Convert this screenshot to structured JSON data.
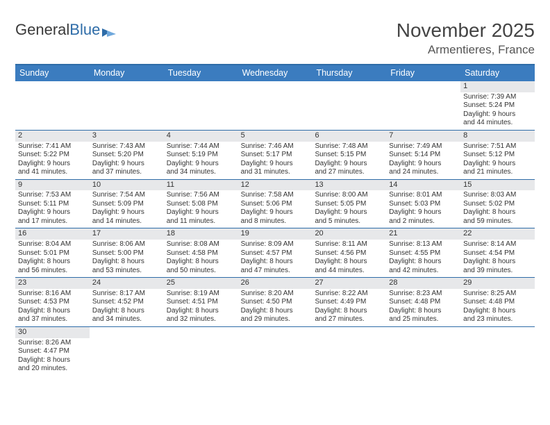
{
  "logo": {
    "part1": "General",
    "part2": "Blue"
  },
  "header": {
    "month_title": "November 2025",
    "location": "Armentieres, France"
  },
  "colors": {
    "accent": "#2e6ca8",
    "header_bg": "#3b7cbf",
    "daynum_bg": "#e7e8ea",
    "text": "#333333"
  },
  "weekdays": [
    "Sunday",
    "Monday",
    "Tuesday",
    "Wednesday",
    "Thursday",
    "Friday",
    "Saturday"
  ],
  "weeks": [
    [
      {
        "n": "",
        "lines": []
      },
      {
        "n": "",
        "lines": []
      },
      {
        "n": "",
        "lines": []
      },
      {
        "n": "",
        "lines": []
      },
      {
        "n": "",
        "lines": []
      },
      {
        "n": "",
        "lines": []
      },
      {
        "n": "1",
        "lines": [
          "Sunrise: 7:39 AM",
          "Sunset: 5:24 PM",
          "Daylight: 9 hours",
          "and 44 minutes."
        ]
      }
    ],
    [
      {
        "n": "2",
        "lines": [
          "Sunrise: 7:41 AM",
          "Sunset: 5:22 PM",
          "Daylight: 9 hours",
          "and 41 minutes."
        ]
      },
      {
        "n": "3",
        "lines": [
          "Sunrise: 7:43 AM",
          "Sunset: 5:20 PM",
          "Daylight: 9 hours",
          "and 37 minutes."
        ]
      },
      {
        "n": "4",
        "lines": [
          "Sunrise: 7:44 AM",
          "Sunset: 5:19 PM",
          "Daylight: 9 hours",
          "and 34 minutes."
        ]
      },
      {
        "n": "5",
        "lines": [
          "Sunrise: 7:46 AM",
          "Sunset: 5:17 PM",
          "Daylight: 9 hours",
          "and 31 minutes."
        ]
      },
      {
        "n": "6",
        "lines": [
          "Sunrise: 7:48 AM",
          "Sunset: 5:15 PM",
          "Daylight: 9 hours",
          "and 27 minutes."
        ]
      },
      {
        "n": "7",
        "lines": [
          "Sunrise: 7:49 AM",
          "Sunset: 5:14 PM",
          "Daylight: 9 hours",
          "and 24 minutes."
        ]
      },
      {
        "n": "8",
        "lines": [
          "Sunrise: 7:51 AM",
          "Sunset: 5:12 PM",
          "Daylight: 9 hours",
          "and 21 minutes."
        ]
      }
    ],
    [
      {
        "n": "9",
        "lines": [
          "Sunrise: 7:53 AM",
          "Sunset: 5:11 PM",
          "Daylight: 9 hours",
          "and 17 minutes."
        ]
      },
      {
        "n": "10",
        "lines": [
          "Sunrise: 7:54 AM",
          "Sunset: 5:09 PM",
          "Daylight: 9 hours",
          "and 14 minutes."
        ]
      },
      {
        "n": "11",
        "lines": [
          "Sunrise: 7:56 AM",
          "Sunset: 5:08 PM",
          "Daylight: 9 hours",
          "and 11 minutes."
        ]
      },
      {
        "n": "12",
        "lines": [
          "Sunrise: 7:58 AM",
          "Sunset: 5:06 PM",
          "Daylight: 9 hours",
          "and 8 minutes."
        ]
      },
      {
        "n": "13",
        "lines": [
          "Sunrise: 8:00 AM",
          "Sunset: 5:05 PM",
          "Daylight: 9 hours",
          "and 5 minutes."
        ]
      },
      {
        "n": "14",
        "lines": [
          "Sunrise: 8:01 AM",
          "Sunset: 5:03 PM",
          "Daylight: 9 hours",
          "and 2 minutes."
        ]
      },
      {
        "n": "15",
        "lines": [
          "Sunrise: 8:03 AM",
          "Sunset: 5:02 PM",
          "Daylight: 8 hours",
          "and 59 minutes."
        ]
      }
    ],
    [
      {
        "n": "16",
        "lines": [
          "Sunrise: 8:04 AM",
          "Sunset: 5:01 PM",
          "Daylight: 8 hours",
          "and 56 minutes."
        ]
      },
      {
        "n": "17",
        "lines": [
          "Sunrise: 8:06 AM",
          "Sunset: 5:00 PM",
          "Daylight: 8 hours",
          "and 53 minutes."
        ]
      },
      {
        "n": "18",
        "lines": [
          "Sunrise: 8:08 AM",
          "Sunset: 4:58 PM",
          "Daylight: 8 hours",
          "and 50 minutes."
        ]
      },
      {
        "n": "19",
        "lines": [
          "Sunrise: 8:09 AM",
          "Sunset: 4:57 PM",
          "Daylight: 8 hours",
          "and 47 minutes."
        ]
      },
      {
        "n": "20",
        "lines": [
          "Sunrise: 8:11 AM",
          "Sunset: 4:56 PM",
          "Daylight: 8 hours",
          "and 44 minutes."
        ]
      },
      {
        "n": "21",
        "lines": [
          "Sunrise: 8:13 AM",
          "Sunset: 4:55 PM",
          "Daylight: 8 hours",
          "and 42 minutes."
        ]
      },
      {
        "n": "22",
        "lines": [
          "Sunrise: 8:14 AM",
          "Sunset: 4:54 PM",
          "Daylight: 8 hours",
          "and 39 minutes."
        ]
      }
    ],
    [
      {
        "n": "23",
        "lines": [
          "Sunrise: 8:16 AM",
          "Sunset: 4:53 PM",
          "Daylight: 8 hours",
          "and 37 minutes."
        ]
      },
      {
        "n": "24",
        "lines": [
          "Sunrise: 8:17 AM",
          "Sunset: 4:52 PM",
          "Daylight: 8 hours",
          "and 34 minutes."
        ]
      },
      {
        "n": "25",
        "lines": [
          "Sunrise: 8:19 AM",
          "Sunset: 4:51 PM",
          "Daylight: 8 hours",
          "and 32 minutes."
        ]
      },
      {
        "n": "26",
        "lines": [
          "Sunrise: 8:20 AM",
          "Sunset: 4:50 PM",
          "Daylight: 8 hours",
          "and 29 minutes."
        ]
      },
      {
        "n": "27",
        "lines": [
          "Sunrise: 8:22 AM",
          "Sunset: 4:49 PM",
          "Daylight: 8 hours",
          "and 27 minutes."
        ]
      },
      {
        "n": "28",
        "lines": [
          "Sunrise: 8:23 AM",
          "Sunset: 4:48 PM",
          "Daylight: 8 hours",
          "and 25 minutes."
        ]
      },
      {
        "n": "29",
        "lines": [
          "Sunrise: 8:25 AM",
          "Sunset: 4:48 PM",
          "Daylight: 8 hours",
          "and 23 minutes."
        ]
      }
    ],
    [
      {
        "n": "30",
        "lines": [
          "Sunrise: 8:26 AM",
          "Sunset: 4:47 PM",
          "Daylight: 8 hours",
          "and 20 minutes."
        ]
      },
      {
        "n": "",
        "lines": []
      },
      {
        "n": "",
        "lines": []
      },
      {
        "n": "",
        "lines": []
      },
      {
        "n": "",
        "lines": []
      },
      {
        "n": "",
        "lines": []
      },
      {
        "n": "",
        "lines": []
      }
    ]
  ]
}
